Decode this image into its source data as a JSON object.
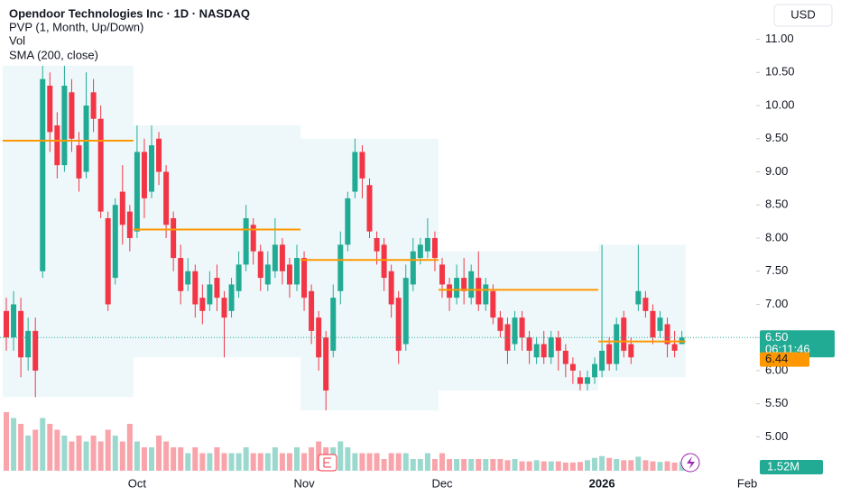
{
  "chart_data": {
    "type": "candlestick",
    "title": "Opendoor Technologies Inc · 1D · NASDAQ",
    "indicators": [
      "PVP (1, Month, Up/Down)",
      "Vol",
      "SMA (200, close)"
    ],
    "currency": "USD",
    "categories": [
      null,
      null,
      null,
      null,
      null,
      null,
      null,
      null,
      null,
      null,
      null,
      null,
      null,
      null,
      null,
      null,
      null,
      null,
      "Oct",
      null,
      null,
      null,
      null,
      null,
      null,
      null,
      null,
      null,
      null,
      null,
      null,
      null,
      null,
      null,
      null,
      null,
      null,
      null,
      null,
      null,
      null,
      "Nov",
      null,
      null,
      null,
      null,
      null,
      null,
      null,
      null,
      null,
      null,
      null,
      null,
      null,
      null,
      null,
      null,
      null,
      null,
      "Dec",
      null,
      null,
      null,
      null,
      null,
      null,
      null,
      null,
      null,
      null,
      null,
      null,
      null,
      null,
      null,
      null,
      null,
      null,
      null,
      null,
      null,
      "2026",
      null,
      null,
      null,
      null,
      null,
      null,
      null,
      null,
      null,
      null,
      null,
      null,
      null,
      null,
      null,
      null,
      null,
      null,
      null,
      "Feb"
    ],
    "open": [
      6.9,
      6.5,
      6.9,
      6.2,
      6.6,
      7.5,
      10.3,
      9.7,
      9.1,
      10.2,
      9.4,
      9.0,
      10.2,
      9.8,
      8.3,
      7.4,
      8.7,
      8.4,
      8.1,
      9.3,
      8.7,
      9.5,
      9.0,
      8.3,
      7.7,
      7.3,
      7.5,
      7.1,
      7.0,
      7.4,
      7.1,
      6.9,
      7.2,
      7.6,
      8.2,
      7.8,
      7.3,
      7.5,
      7.9,
      7.6,
      7.3,
      7.7,
      7.2,
      6.8,
      6.5,
      6.3,
      7.2,
      7.9,
      8.7,
      9.3,
      8.8,
      8.0,
      7.9,
      7.5,
      7.1,
      6.4,
      7.3,
      7.7,
      7.8,
      8.0,
      7.6,
      7.3,
      7.1,
      7.4,
      7.1,
      7.4,
      7.0,
      7.2,
      6.8,
      6.7,
      6.4,
      6.8,
      6.5,
      6.2,
      6.4,
      6.2,
      6.5,
      6.3,
      6.1,
      5.9,
      5.8,
      5.9,
      6.0,
      6.4,
      6.1,
      6.8,
      6.4,
      7.0,
      7.1,
      6.9,
      6.6,
      6.7,
      6.4,
      6.4,
      null,
      null,
      null,
      null,
      null,
      null,
      null,
      null,
      null
    ],
    "high": [
      7.1,
      7.2,
      7.1,
      6.8,
      6.8,
      10.6,
      10.5,
      9.9,
      10.6,
      10.4,
      9.6,
      10.5,
      10.4,
      10.0,
      8.4,
      8.6,
      9.1,
      8.5,
      9.7,
      9.5,
      9.7,
      9.6,
      9.1,
      8.4,
      7.9,
      7.7,
      7.6,
      7.3,
      7.5,
      7.6,
      7.2,
      7.4,
      7.8,
      8.5,
      8.3,
      7.9,
      7.8,
      8.3,
      8.0,
      7.7,
      7.9,
      7.8,
      7.3,
      6.9,
      6.6,
      7.3,
      8.1,
      8.7,
      9.5,
      9.4,
      8.9,
      8.1,
      8.0,
      7.6,
      7.2,
      7.6,
      8.0,
      8.0,
      8.3,
      8.1,
      7.7,
      7.4,
      7.6,
      7.7,
      7.6,
      7.8,
      7.4,
      7.3,
      6.9,
      6.8,
      6.9,
      6.9,
      6.6,
      6.5,
      6.6,
      6.6,
      6.6,
      6.4,
      6.2,
      6.0,
      6.0,
      6.2,
      7.9,
      6.5,
      6.8,
      6.9,
      6.5,
      7.9,
      7.2,
      7.0,
      6.9,
      6.8,
      6.6,
      6.6,
      null,
      null,
      null,
      null,
      null,
      null,
      null,
      null,
      null
    ],
    "low": [
      6.3,
      6.3,
      5.9,
      6.0,
      5.6,
      7.4,
      9.3,
      8.9,
      9.0,
      9.3,
      8.7,
      8.9,
      9.6,
      8.3,
      6.9,
      7.3,
      7.9,
      7.8,
      8.0,
      8.3,
      8.6,
      8.8,
      8.0,
      7.5,
      7.0,
      7.2,
      6.8,
      6.7,
      6.9,
      6.9,
      6.2,
      6.8,
      7.1,
      7.5,
      7.6,
      7.2,
      7.2,
      7.4,
      7.3,
      7.1,
      7.2,
      6.9,
      6.4,
      6.0,
      5.4,
      6.2,
      7.0,
      7.8,
      8.6,
      8.6,
      8.0,
      7.6,
      7.2,
      6.8,
      6.1,
      6.3,
      7.2,
      7.6,
      7.7,
      7.5,
      7.1,
      6.9,
      7.0,
      7.0,
      7.0,
      6.9,
      6.9,
      6.7,
      6.5,
      6.1,
      6.3,
      6.3,
      6.1,
      6.1,
      6.1,
      6.1,
      6.0,
      5.9,
      5.8,
      5.7,
      5.7,
      5.8,
      5.9,
      6.0,
      6.0,
      6.2,
      6.1,
      6.9,
      6.8,
      6.4,
      6.5,
      6.2,
      6.2,
      6.4,
      null,
      null,
      null,
      null,
      null,
      null,
      null,
      null,
      null
    ],
    "close": [
      6.5,
      7.0,
      6.2,
      6.6,
      6.0,
      10.4,
      9.6,
      9.1,
      10.3,
      9.5,
      8.9,
      10.0,
      9.8,
      8.4,
      7.0,
      8.5,
      8.2,
      8.0,
      9.3,
      8.6,
      9.4,
      9.0,
      8.2,
      7.7,
      7.2,
      7.5,
      7.0,
      6.9,
      7.3,
      7.1,
      6.8,
      7.3,
      7.6,
      8.3,
      7.8,
      7.4,
      7.6,
      7.9,
      7.5,
      7.3,
      7.7,
      7.1,
      6.6,
      6.2,
      5.7,
      7.1,
      7.9,
      8.6,
      9.3,
      8.9,
      8.1,
      7.8,
      7.4,
      7.0,
      6.3,
      7.4,
      7.8,
      7.9,
      8.0,
      7.7,
      7.3,
      7.1,
      7.4,
      7.2,
      7.5,
      7.0,
      7.3,
      6.8,
      6.6,
      6.3,
      6.8,
      6.5,
      6.3,
      6.4,
      6.2,
      6.5,
      6.3,
      6.1,
      6.0,
      5.8,
      5.9,
      6.1,
      6.3,
      6.1,
      6.7,
      6.3,
      6.2,
      7.2,
      6.9,
      6.5,
      6.8,
      6.4,
      6.3,
      6.5,
      null,
      null,
      null,
      null,
      null,
      null,
      null,
      null,
      null
    ],
    "volume": [
      10,
      9,
      8,
      6,
      7,
      9,
      8,
      7,
      6,
      5,
      6,
      5,
      6,
      5,
      7,
      6,
      5,
      8,
      5,
      4,
      4,
      6,
      5,
      4,
      4,
      3,
      4,
      3,
      3,
      4,
      3,
      3,
      3,
      4,
      3,
      3,
      3,
      4,
      3,
      3,
      4,
      3,
      4,
      5,
      4,
      4,
      5,
      4,
      3,
      3,
      3,
      3,
      2,
      3,
      3,
      3,
      2,
      2,
      3,
      2,
      3,
      2,
      2,
      2,
      2,
      2,
      2,
      2,
      2,
      1.8,
      2,
      1.6,
      1.6,
      1.8,
      1.6,
      1.6,
      1.6,
      1.4,
      1.4,
      1.5,
      1.8,
      2.2,
      2.5,
      2.2,
      2,
      1.8,
      1.8,
      2.4,
      1.8,
      1.6,
      1.5,
      1.6,
      1.4,
      1.52,
      null,
      null,
      null,
      null,
      null,
      null,
      null,
      null,
      null
    ],
    "volume_last_label": "1.52M",
    "poc_levels": [
      9.47,
      8.13,
      7.67,
      7.22
    ],
    "current_poc": {
      "value": 6.44,
      "label": "6.44"
    },
    "last_price": {
      "value": 6.5,
      "label": "6.50"
    },
    "countdown": "06:11:46",
    "ylim": [
      4.7,
      11.3
    ],
    "yticks": [
      {
        "value": 5,
        "label": "5.00"
      },
      {
        "value": 5.5,
        "label": "5.50"
      },
      {
        "value": 6,
        "label": "6.00"
      },
      {
        "value": 6.5,
        "label": "6.50"
      },
      {
        "value": 7,
        "label": "7.00"
      },
      {
        "value": 7.5,
        "label": "7.50"
      },
      {
        "value": 8,
        "label": "8.00"
      },
      {
        "value": 8.5,
        "label": "8.50"
      },
      {
        "value": 9,
        "label": "9.00"
      },
      {
        "value": 9.5,
        "label": "9.50"
      },
      {
        "value": 10,
        "label": "10.00"
      },
      {
        "value": 10.5,
        "label": "10.50"
      },
      {
        "value": 11,
        "label": "11.00"
      }
    ],
    "up_color": "#22ab94",
    "down_color": "#f23645",
    "poc_color": "#ff9800"
  }
}
